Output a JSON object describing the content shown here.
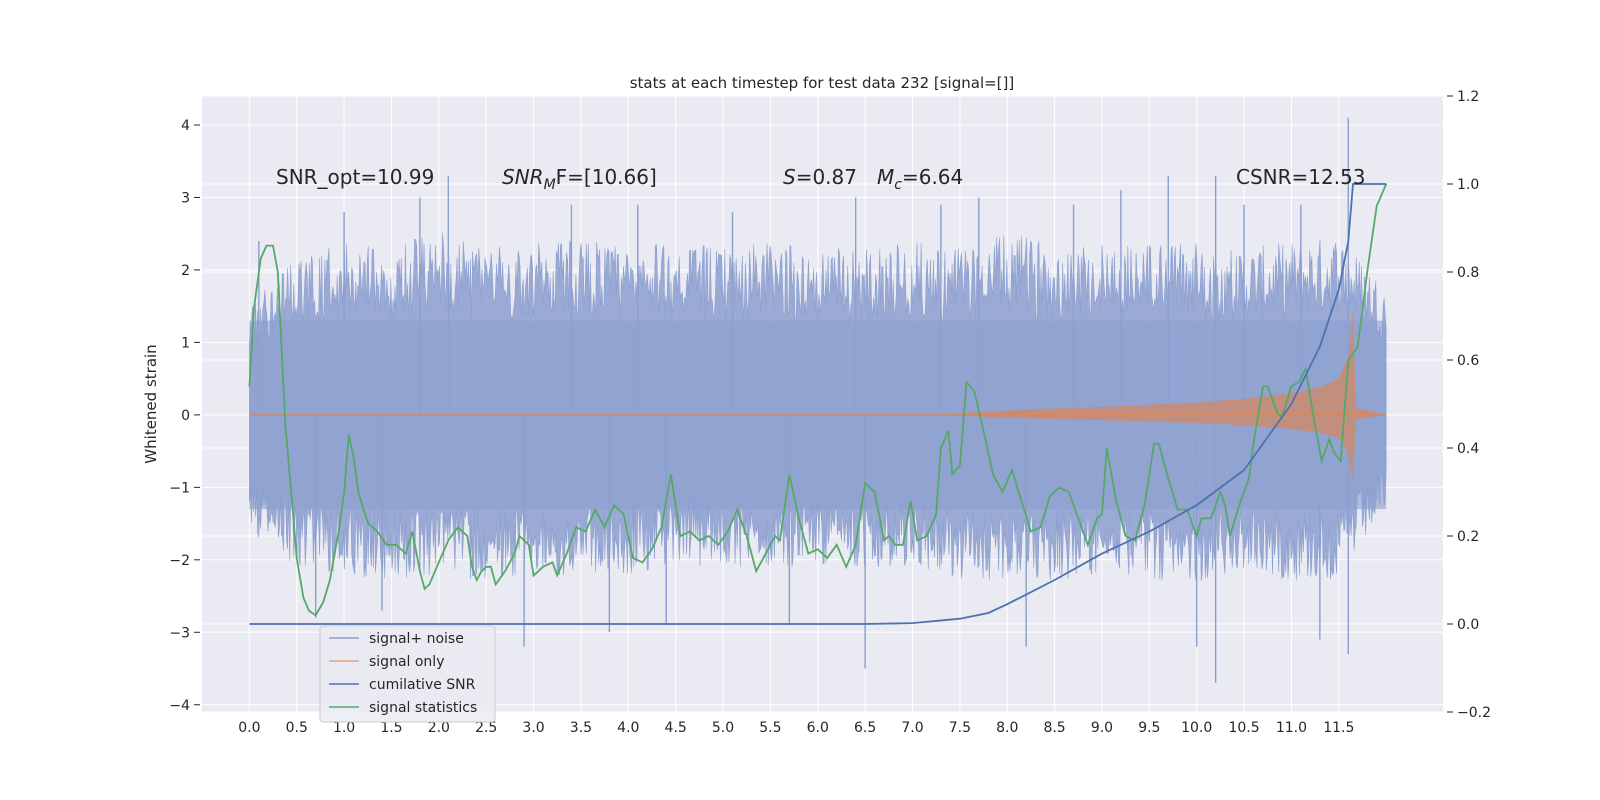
{
  "chart_data": {
    "type": "line",
    "title": "stats at each timestep for test data 232 [signal=[]]",
    "ylabel": "Whitened strain",
    "xlabel": "",
    "xlim": [
      -0.5,
      12.6
    ],
    "ylim": [
      -4.1,
      4.4
    ],
    "y2lim": [
      -0.2,
      1.2
    ],
    "x_ticks": [
      "0.0",
      "0.5",
      "1.0",
      "1.5",
      "2.0",
      "2.5",
      "3.0",
      "3.5",
      "4.0",
      "4.5",
      "5.0",
      "5.5",
      "6.0",
      "6.5",
      "7.0",
      "7.5",
      "8.0",
      "8.5",
      "9.0",
      "9.5",
      "10.0",
      "10.5",
      "11.0",
      "11.5"
    ],
    "y_ticks": [
      "4",
      "3",
      "2",
      "1",
      "0",
      "−1",
      "−2",
      "−3",
      "−4"
    ],
    "y2_ticks": [
      "1.2",
      "1.0",
      "0.8",
      "0.6",
      "0.4",
      "0.2",
      "0.0",
      "−0.2"
    ],
    "grid": true,
    "legend_position": "lower-left",
    "annotations": {
      "snr_opt": "SNR_opt=10.99",
      "snr_mf_sym": "SNR",
      "snr_mf_sub": "M",
      "snr_mf_rest": "F=[10.66]",
      "s_sym": "S",
      "s_val": "=0.87",
      "mc_sym": "M",
      "mc_sub": "c",
      "mc_val": "=6.64",
      "csnr": "CSNR=12.53"
    },
    "series": [
      {
        "name": "signal+ noise",
        "color": "#8c9fcf",
        "envelope_upper": [
          [
            0.0,
            1.5
          ],
          [
            0.5,
            2.2
          ],
          [
            1.0,
            2.4
          ],
          [
            1.5,
            2.3
          ],
          [
            2.0,
            2.6
          ],
          [
            2.5,
            2.3
          ],
          [
            3.0,
            2.4
          ],
          [
            3.5,
            2.5
          ],
          [
            4.0,
            2.3
          ],
          [
            4.5,
            2.4
          ],
          [
            5.0,
            2.3
          ],
          [
            5.5,
            2.4
          ],
          [
            6.0,
            2.3
          ],
          [
            6.5,
            2.3
          ],
          [
            7.0,
            2.4
          ],
          [
            7.5,
            2.3
          ],
          [
            8.0,
            2.5
          ],
          [
            8.5,
            2.4
          ],
          [
            9.0,
            2.4
          ],
          [
            9.5,
            2.4
          ],
          [
            10.0,
            2.4
          ],
          [
            10.5,
            2.3
          ],
          [
            11.0,
            2.4
          ],
          [
            11.5,
            2.5
          ],
          [
            12.0,
            1.8
          ]
        ],
        "envelope_lower": [
          [
            0.0,
            -1.6
          ],
          [
            0.5,
            -2.1
          ],
          [
            1.0,
            -2.2
          ],
          [
            1.5,
            -2.3
          ],
          [
            2.0,
            -2.2
          ],
          [
            2.5,
            -2.3
          ],
          [
            3.0,
            -2.3
          ],
          [
            3.5,
            -2.2
          ],
          [
            4.0,
            -2.2
          ],
          [
            4.5,
            -2.1
          ],
          [
            5.0,
            -2.1
          ],
          [
            5.5,
            -2.1
          ],
          [
            6.0,
            -2.1
          ],
          [
            6.5,
            -2.1
          ],
          [
            7.0,
            -2.1
          ],
          [
            7.5,
            -2.3
          ],
          [
            8.0,
            -2.3
          ],
          [
            8.5,
            -2.3
          ],
          [
            9.0,
            -2.2
          ],
          [
            9.5,
            -2.3
          ],
          [
            10.0,
            -2.3
          ],
          [
            10.5,
            -2.2
          ],
          [
            11.0,
            -2.3
          ],
          [
            11.5,
            -2.3
          ],
          [
            12.0,
            -1.3
          ]
        ],
        "spikes": [
          [
            0.1,
            2.4
          ],
          [
            0.7,
            -2.8
          ],
          [
            1.0,
            2.8
          ],
          [
            1.4,
            -2.7
          ],
          [
            1.8,
            3.0
          ],
          [
            2.1,
            3.3
          ],
          [
            2.9,
            -3.2
          ],
          [
            3.4,
            2.9
          ],
          [
            3.8,
            -3.0
          ],
          [
            4.1,
            2.9
          ],
          [
            4.4,
            -2.9
          ],
          [
            5.1,
            2.8
          ],
          [
            5.7,
            -2.9
          ],
          [
            6.4,
            3.0
          ],
          [
            6.5,
            -3.5
          ],
          [
            7.3,
            2.9
          ],
          [
            7.7,
            3.0
          ],
          [
            8.2,
            -3.2
          ],
          [
            8.7,
            2.9
          ],
          [
            9.2,
            3.1
          ],
          [
            9.7,
            3.3
          ],
          [
            10.0,
            -3.2
          ],
          [
            10.2,
            3.3
          ],
          [
            10.2,
            -3.7
          ],
          [
            10.5,
            2.9
          ],
          [
            11.1,
            2.9
          ],
          [
            11.3,
            -3.1
          ],
          [
            11.6,
            4.1
          ],
          [
            11.6,
            -3.3
          ]
        ]
      },
      {
        "name": "signal only",
        "color": "#dd8452",
        "envelope": [
          [
            0.0,
            0.0
          ],
          [
            7.3,
            0.0
          ],
          [
            7.6,
            0.03
          ],
          [
            8.0,
            0.06
          ],
          [
            8.5,
            0.09
          ],
          [
            9.0,
            0.11
          ],
          [
            9.5,
            0.14
          ],
          [
            10.0,
            0.17
          ],
          [
            10.5,
            0.22
          ],
          [
            11.0,
            0.3
          ],
          [
            11.3,
            0.38
          ],
          [
            11.5,
            0.5
          ],
          [
            11.6,
            0.8
          ],
          [
            11.65,
            1.45
          ],
          [
            11.68,
            0.1
          ],
          [
            12.0,
            0.0
          ]
        ]
      },
      {
        "name": "cumilative SNR",
        "color": "#4c72b0",
        "axis": "right",
        "points": [
          [
            0.0,
            0.0
          ],
          [
            6.5,
            0.0
          ],
          [
            7.0,
            0.002
          ],
          [
            7.5,
            0.012
          ],
          [
            7.8,
            0.025
          ],
          [
            8.0,
            0.045
          ],
          [
            8.5,
            0.1
          ],
          [
            9.0,
            0.16
          ],
          [
            9.5,
            0.21
          ],
          [
            10.0,
            0.27
          ],
          [
            10.5,
            0.35
          ],
          [
            11.0,
            0.5
          ],
          [
            11.3,
            0.63
          ],
          [
            11.5,
            0.76
          ],
          [
            11.6,
            0.87
          ],
          [
            11.65,
            1.0
          ],
          [
            12.0,
            1.0
          ]
        ]
      },
      {
        "name": "signal statistics",
        "color": "#55a868",
        "axis": "right",
        "points": [
          [
            0.0,
            0.54
          ],
          [
            0.05,
            0.72
          ],
          [
            0.12,
            0.83
          ],
          [
            0.18,
            0.86
          ],
          [
            0.25,
            0.86
          ],
          [
            0.3,
            0.8
          ],
          [
            0.38,
            0.45
          ],
          [
            0.45,
            0.28
          ],
          [
            0.5,
            0.15
          ],
          [
            0.57,
            0.06
          ],
          [
            0.63,
            0.03
          ],
          [
            0.7,
            0.02
          ],
          [
            0.78,
            0.05
          ],
          [
            0.85,
            0.1
          ],
          [
            0.95,
            0.22
          ],
          [
            1.0,
            0.3
          ],
          [
            1.05,
            0.43
          ],
          [
            1.1,
            0.38
          ],
          [
            1.15,
            0.3
          ],
          [
            1.25,
            0.23
          ],
          [
            1.35,
            0.21
          ],
          [
            1.45,
            0.18
          ],
          [
            1.55,
            0.18
          ],
          [
            1.65,
            0.16
          ],
          [
            1.72,
            0.21
          ],
          [
            1.8,
            0.12
          ],
          [
            1.85,
            0.08
          ],
          [
            1.9,
            0.09
          ],
          [
            2.0,
            0.14
          ],
          [
            2.1,
            0.19
          ],
          [
            2.2,
            0.22
          ],
          [
            2.3,
            0.2
          ],
          [
            2.35,
            0.13
          ],
          [
            2.4,
            0.1
          ],
          [
            2.45,
            0.12
          ],
          [
            2.5,
            0.13
          ],
          [
            2.55,
            0.13
          ],
          [
            2.6,
            0.09
          ],
          [
            2.7,
            0.12
          ],
          [
            2.8,
            0.16
          ],
          [
            2.85,
            0.2
          ],
          [
            2.95,
            0.18
          ],
          [
            3.0,
            0.11
          ],
          [
            3.05,
            0.12
          ],
          [
            3.1,
            0.13
          ],
          [
            3.2,
            0.14
          ],
          [
            3.25,
            0.11
          ],
          [
            3.35,
            0.16
          ],
          [
            3.45,
            0.22
          ],
          [
            3.55,
            0.21
          ],
          [
            3.65,
            0.26
          ],
          [
            3.75,
            0.22
          ],
          [
            3.85,
            0.27
          ],
          [
            3.95,
            0.25
          ],
          [
            4.05,
            0.15
          ],
          [
            4.15,
            0.14
          ],
          [
            4.25,
            0.17
          ],
          [
            4.35,
            0.22
          ],
          [
            4.45,
            0.34
          ],
          [
            4.55,
            0.2
          ],
          [
            4.65,
            0.21
          ],
          [
            4.75,
            0.19
          ],
          [
            4.85,
            0.2
          ],
          [
            4.95,
            0.18
          ],
          [
            5.05,
            0.21
          ],
          [
            5.15,
            0.26
          ],
          [
            5.25,
            0.2
          ],
          [
            5.35,
            0.12
          ],
          [
            5.45,
            0.16
          ],
          [
            5.55,
            0.2
          ],
          [
            5.6,
            0.19
          ],
          [
            5.7,
            0.34
          ],
          [
            5.8,
            0.24
          ],
          [
            5.9,
            0.16
          ],
          [
            6.0,
            0.17
          ],
          [
            6.1,
            0.15
          ],
          [
            6.2,
            0.18
          ],
          [
            6.3,
            0.13
          ],
          [
            6.4,
            0.18
          ],
          [
            6.5,
            0.32
          ],
          [
            6.6,
            0.3
          ],
          [
            6.7,
            0.19
          ],
          [
            6.75,
            0.2
          ],
          [
            6.82,
            0.18
          ],
          [
            6.9,
            0.18
          ],
          [
            6.98,
            0.28
          ],
          [
            7.05,
            0.19
          ],
          [
            7.15,
            0.2
          ],
          [
            7.25,
            0.25
          ],
          [
            7.3,
            0.4
          ],
          [
            7.38,
            0.44
          ],
          [
            7.42,
            0.34
          ],
          [
            7.5,
            0.36
          ],
          [
            7.57,
            0.55
          ],
          [
            7.65,
            0.53
          ],
          [
            7.75,
            0.44
          ],
          [
            7.85,
            0.34
          ],
          [
            7.95,
            0.3
          ],
          [
            8.05,
            0.35
          ],
          [
            8.15,
            0.28
          ],
          [
            8.25,
            0.21
          ],
          [
            8.35,
            0.22
          ],
          [
            8.45,
            0.29
          ],
          [
            8.55,
            0.31
          ],
          [
            8.65,
            0.3
          ],
          [
            8.75,
            0.24
          ],
          [
            8.85,
            0.18
          ],
          [
            8.95,
            0.24
          ],
          [
            9.0,
            0.25
          ],
          [
            9.05,
            0.4
          ],
          [
            9.15,
            0.28
          ],
          [
            9.25,
            0.2
          ],
          [
            9.35,
            0.19
          ],
          [
            9.45,
            0.27
          ],
          [
            9.55,
            0.41
          ],
          [
            9.6,
            0.41
          ],
          [
            9.7,
            0.33
          ],
          [
            9.8,
            0.26
          ],
          [
            9.9,
            0.26
          ],
          [
            10.0,
            0.2
          ],
          [
            10.05,
            0.24
          ],
          [
            10.15,
            0.24
          ],
          [
            10.25,
            0.3
          ],
          [
            10.3,
            0.27
          ],
          [
            10.35,
            0.2
          ],
          [
            10.45,
            0.27
          ],
          [
            10.55,
            0.33
          ],
          [
            10.6,
            0.41
          ],
          [
            10.7,
            0.54
          ],
          [
            10.75,
            0.54
          ],
          [
            10.85,
            0.48
          ],
          [
            10.9,
            0.47
          ],
          [
            11.0,
            0.54
          ],
          [
            11.08,
            0.55
          ],
          [
            11.15,
            0.58
          ],
          [
            11.25,
            0.45
          ],
          [
            11.32,
            0.37
          ],
          [
            11.4,
            0.42
          ],
          [
            11.45,
            0.39
          ],
          [
            11.52,
            0.37
          ],
          [
            11.6,
            0.6
          ],
          [
            11.7,
            0.63
          ],
          [
            11.8,
            0.8
          ],
          [
            11.9,
            0.95
          ],
          [
            12.0,
            1.0
          ]
        ]
      }
    ]
  }
}
